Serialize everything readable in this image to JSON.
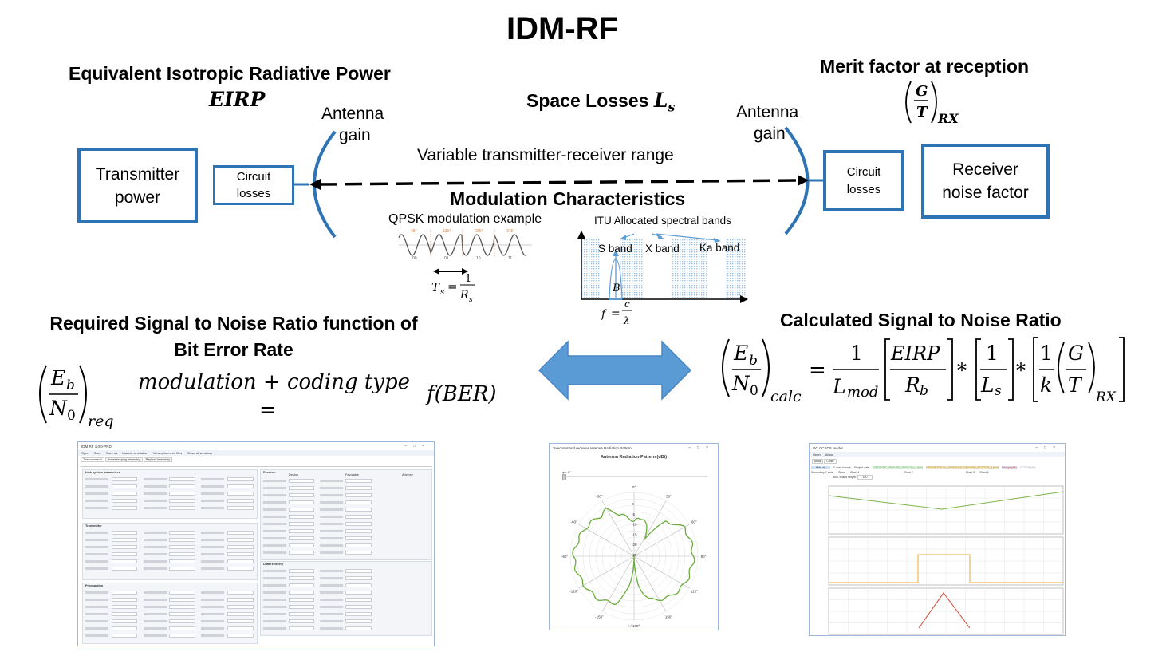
{
  "title": "IDM-RF",
  "colors": {
    "accent_blue": "#2e74b5",
    "arrow_blue": "#5b9bd5",
    "band_blue": "#9dc3e6",
    "green_curve": "#6aad3a",
    "orange_curve": "#f0a830",
    "red_curve": "#d9462f"
  },
  "eirp": {
    "heading": "Equivalent Isotropic Radiative Power",
    "symbol": "EIRP"
  },
  "antenna_left": {
    "line1": "Antenna",
    "line2": "gain"
  },
  "antenna_right": {
    "line1": "Antenna",
    "line2": "gain"
  },
  "space_losses": {
    "heading": "Space Losses ",
    "symbol": "L",
    "sub": "s"
  },
  "merit": {
    "heading": "Merit factor at reception",
    "num": "G",
    "den": "T",
    "sub": "RX"
  },
  "boxes": {
    "transmitter": {
      "line1": "Transmitter",
      "line2": "power"
    },
    "circuit_left": {
      "line1": "Circuit",
      "line2": "losses"
    },
    "circuit_right": {
      "line1": "Circuit",
      "line2": "losses"
    },
    "receiver": {
      "line1": "Receiver",
      "line2": "noise factor"
    }
  },
  "range_label": "Variable transmitter-receiver range",
  "modulation": {
    "heading": "Modulation Characteristics",
    "qpsk_label": "QPSK modulation example",
    "phases": [
      "45°",
      "135°",
      "225°",
      "315°"
    ],
    "symbols": [
      "00",
      "01",
      "10",
      "11"
    ],
    "ts": "T",
    "ts_sub": "s",
    "eq": "=",
    "one": "1",
    "rs": "R",
    "rs_sub": "s",
    "itu_label": "ITU Allocated spectral bands",
    "bands": [
      "S band",
      "X band",
      "Ka band"
    ],
    "bandwidth": "B",
    "f": "f",
    "c": "c",
    "lambda": "λ"
  },
  "required": {
    "heading_line1": "Required Signal to Noise Ratio function of",
    "heading_line2": "Bit Error Rate",
    "eb": "E",
    "eb_sub": "b",
    "n0": "N",
    "n0_sub": "0",
    "sub": "req",
    "middle": "modulation + coding type",
    "eq": "=",
    "fber": "f(BER)"
  },
  "calculated": {
    "heading": "Calculated Signal to Noise Ratio",
    "eb": "E",
    "eb_sub": "b",
    "n0": "N",
    "n0_sub": "0",
    "sub": "calc",
    "eq": "=",
    "one": "1",
    "lmod": "L",
    "lmod_sub": "mod",
    "eirp": "EIRP",
    "rb": "R",
    "rb_sub": "b",
    "times": "*",
    "ls": "L",
    "ls_sub": "s",
    "k": "k",
    "g": "G",
    "t": "T",
    "rx": "RX"
  },
  "screens": {
    "main_app": {
      "title": "IDM RF 1.0.0-PRD",
      "toolbar": [
        "Open",
        "Save",
        "Save as",
        "Launch simulation",
        "View ephemeris files",
        "Close all windows"
      ],
      "tabs": [
        "Telecommand",
        "Housekeeping telemetry",
        "Payload telemetry"
      ],
      "groups": [
        "Link system parameters",
        "Receiver",
        "Transmitter",
        "Propagation",
        "Data recovery"
      ],
      "columns": [
        "Design",
        "Favorable",
        "Adverse"
      ]
    },
    "radiation": {
      "title": "Telecommand receiver antenna Radiation Pattern",
      "heading": "Antenna Radiation Pattern (dBi)",
      "slider_label": "φ = 0°",
      "angles": [
        "0°",
        "30°",
        "60°",
        "90°",
        "120°",
        "150°",
        "+/-180°",
        "-150°",
        "-120°",
        "-90°",
        "-60°",
        "-30°"
      ],
      "rings": [
        "0",
        "-5",
        "-10",
        "-15",
        "-20",
        "-25"
      ]
    },
    "ccsds": {
      "title": "OC CCSDS reader",
      "menu": [
        "Open",
        "About"
      ],
      "tabs": [
        "Infos",
        "Chart"
      ],
      "controls": [
        "Hide all",
        "X axes format:",
        "Project date",
        "Secondary Y axis:",
        "Show",
        "Min. charts height:",
        "150"
      ],
      "series": [
        "DISTANCE_GROUND_STATION_1 (km)",
        "GEOMETRICAL_VISIBILITY_GROUND_STATION_1 (n/a)",
        "Design (dB)",
        "CCSDS (dB)"
      ],
      "chart_selects": [
        "Chart 1",
        "Chart 2",
        "Chart 3",
        "Chart 1"
      ]
    }
  }
}
